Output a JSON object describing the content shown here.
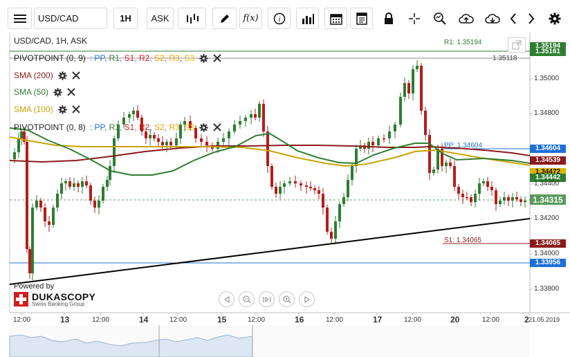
{
  "toolbar": {
    "symbol": "USD/CAD",
    "timeframe": "1H",
    "side": "ASK"
  },
  "chart": {
    "title": "USD/CAD, 1H, ASK",
    "indicators": [
      {
        "name": "PIVOTPOINT (0, 9)",
        "params": [
          "PP",
          "R1",
          "S1",
          "R2",
          "S2",
          "R3",
          "S3"
        ]
      },
      {
        "name": "SMA (200)"
      },
      {
        "name": "SMA (50)"
      },
      {
        "name": "SMA (100)"
      },
      {
        "name": "PIVOTPOINT (0, 8)",
        "params": [
          "PP",
          "R1",
          "S1",
          "R2",
          "S2",
          "R3",
          "S3"
        ]
      }
    ],
    "line_labels": {
      "r1": "R1: 1.35194",
      "r1_right": "1.35118",
      "pp": "PP: 1.34604",
      "s1": "S1: 1.34065"
    },
    "price_tags": {
      "r1_upper": "1.35194",
      "r1_lower": "1.35161",
      "pp": "1.34604",
      "sma200": "1.34539",
      "sma100": "1.34472",
      "sma50": "1.34442",
      "current": "1.34315",
      "s1": "1.34065",
      "blue_line": "1.33956"
    },
    "price_axis": [
      "1.35000",
      "1.34800",
      "1.34400",
      "1.34200",
      "1.34000",
      "1.33800"
    ],
    "price_axis_hidden": "1.34400",
    "time_axis": [
      {
        "label": "12:00",
        "day": false
      },
      {
        "label": "13",
        "day": true
      },
      {
        "label": "12:00",
        "day": false
      },
      {
        "label": "14",
        "day": true
      },
      {
        "label": "12:00",
        "day": false
      },
      {
        "label": "15",
        "day": true
      },
      {
        "label": "12:00",
        "day": false
      },
      {
        "label": "16",
        "day": true
      },
      {
        "label": "12:00",
        "day": false
      },
      {
        "label": "17",
        "day": true
      },
      {
        "label": "12:00",
        "day": false
      },
      {
        "label": "20",
        "day": true
      },
      {
        "label": "12:00",
        "day": false
      },
      {
        "label": "2",
        "day": true
      },
      {
        "label": "21.05.2019",
        "day": false
      }
    ],
    "colors": {
      "sma200": "#8b1a1a",
      "sma50": "#2e7d32",
      "sma100": "#c9a400",
      "pp": "#1e6fd9",
      "r1": "#2e7d32",
      "s1": "#8b1a1a",
      "trend": "#000000"
    }
  },
  "branding": {
    "powered": "Powered by",
    "name": "DUKASCOPY",
    "tagline": "Swiss Banking Group"
  },
  "icons": [
    "menu-icon",
    "bars-icon",
    "pencil-icon",
    "function-icon",
    "info-icon",
    "volume-icon",
    "calendar-icon",
    "report-icon",
    "lock-icon",
    "crosshair-icon",
    "zoom-icon",
    "upload-icon",
    "download-icon",
    "chevron-left-icon",
    "chevron-right-icon",
    "gear-icon"
  ]
}
